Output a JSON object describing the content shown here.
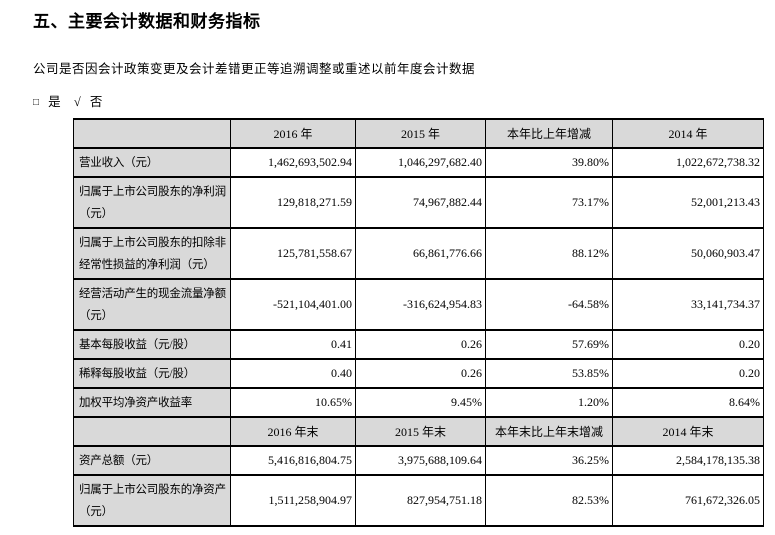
{
  "page": {
    "title": "五、主要会计数据和财务指标",
    "question": "公司是否因会计政策变更及会计差错更正等追溯调整或重述以前年度会计数据",
    "answer": {
      "box": "□",
      "yes": "是",
      "check": "√",
      "no": "否"
    }
  },
  "table": {
    "sections": [
      {
        "header": {
          "col0": "",
          "cols": [
            "2016 年",
            "2015 年",
            "本年比上年增减",
            "2014 年"
          ]
        },
        "rows": [
          {
            "label": "营业收入（元）",
            "values": [
              "1,462,693,502.94",
              "1,046,297,682.40",
              "39.80%",
              "1,022,672,738.32"
            ]
          },
          {
            "label": "归属于上市公司股东的净利润（元）",
            "values": [
              "129,818,271.59",
              "74,967,882.44",
              "73.17%",
              "52,001,213.43"
            ]
          },
          {
            "label": "归属于上市公司股东的扣除非经常性损益的净利润（元）",
            "values": [
              "125,781,558.67",
              "66,861,776.66",
              "88.12%",
              "50,060,903.47"
            ]
          },
          {
            "label": "经营活动产生的现金流量净额（元）",
            "values": [
              "-521,104,401.00",
              "-316,624,954.83",
              "-64.58%",
              "33,141,734.37"
            ]
          },
          {
            "label": "基本每股收益（元/股）",
            "values": [
              "0.41",
              "0.26",
              "57.69%",
              "0.20"
            ]
          },
          {
            "label": "稀释每股收益（元/股）",
            "values": [
              "0.40",
              "0.26",
              "53.85%",
              "0.20"
            ]
          },
          {
            "label": "加权平均净资产收益率",
            "values": [
              "10.65%",
              "9.45%",
              "1.20%",
              "8.64%"
            ]
          }
        ]
      },
      {
        "header": {
          "col0": "",
          "cols": [
            "2016 年末",
            "2015 年末",
            "本年末比上年末增减",
            "2014 年末"
          ]
        },
        "rows": [
          {
            "label": "资产总额（元）",
            "values": [
              "5,416,816,804.75",
              "3,975,688,109.64",
              "36.25%",
              "2,584,178,135.38"
            ]
          },
          {
            "label": "归属于上市公司股东的净资产（元）",
            "values": [
              "1,511,258,904.97",
              "827,954,751.18",
              "82.53%",
              "761,672,326.05"
            ]
          }
        ]
      }
    ]
  },
  "colors": {
    "header_bg": "#d9d9d9",
    "border": "#000000",
    "text": "#000000"
  }
}
